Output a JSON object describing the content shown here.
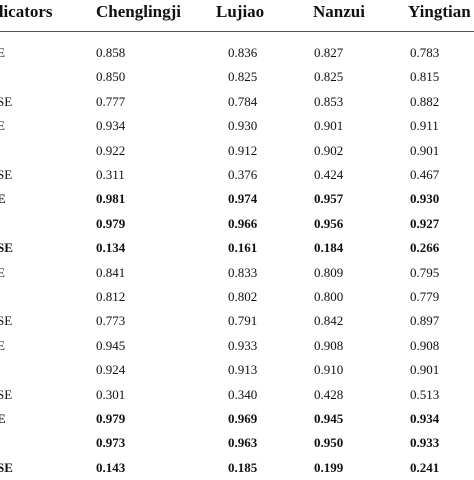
{
  "header": {
    "indicators": "dicators",
    "cols": [
      "Chenglingji",
      "Lujiao",
      "Nanzui",
      "Yingtian"
    ]
  },
  "rows": [
    {
      "label": "E",
      "values": [
        "0.858",
        "0.836",
        "0.827",
        "0.783"
      ],
      "bold": false
    },
    {
      "label": "",
      "values": [
        "0.850",
        "0.825",
        "0.825",
        "0.815"
      ],
      "bold": false
    },
    {
      "label": "SE",
      "values": [
        "0.777",
        "0.784",
        "0.853",
        "0.882"
      ],
      "bold": false
    },
    {
      "label": "E",
      "values": [
        "0.934",
        "0.930",
        "0.901",
        "0.911"
      ],
      "bold": false
    },
    {
      "label": "",
      "values": [
        "0.922",
        "0.912",
        "0.902",
        "0.901"
      ],
      "bold": false
    },
    {
      "label": "SE",
      "values": [
        "0.311",
        "0.376",
        "0.424",
        "0.467"
      ],
      "bold": false
    },
    {
      "label": "E",
      "values": [
        "0.981",
        "0.974",
        "0.957",
        "0.930"
      ],
      "bold": true
    },
    {
      "label": "",
      "values": [
        "0.979",
        "0.966",
        "0.956",
        "0.927"
      ],
      "bold": true
    },
    {
      "label": "SE",
      "values": [
        "0.134",
        "0.161",
        "0.184",
        "0.266"
      ],
      "bold": true
    },
    {
      "label": "E",
      "values": [
        "0.841",
        "0.833",
        "0.809",
        "0.795"
      ],
      "bold": false
    },
    {
      "label": "",
      "values": [
        "0.812",
        "0.802",
        "0.800",
        "0.779"
      ],
      "bold": false
    },
    {
      "label": "SE",
      "values": [
        "0.773",
        "0.791",
        "0.842",
        "0.897"
      ],
      "bold": false
    },
    {
      "label": "E",
      "values": [
        "0.945",
        "0.933",
        "0.908",
        "0.908"
      ],
      "bold": false
    },
    {
      "label": "",
      "values": [
        "0.924",
        "0.913",
        "0.910",
        "0.901"
      ],
      "bold": false
    },
    {
      "label": "SE",
      "values": [
        "0.301",
        "0.340",
        "0.428",
        "0.513"
      ],
      "bold": false
    },
    {
      "label": "E",
      "values": [
        "0.979",
        "0.969",
        "0.945",
        "0.934"
      ],
      "bold": true
    },
    {
      "label": "",
      "values": [
        "0.973",
        "0.963",
        "0.950",
        "0.933"
      ],
      "bold": true
    },
    {
      "label": "SE",
      "values": [
        "0.143",
        "0.185",
        "0.199",
        "0.241"
      ],
      "bold": true
    }
  ]
}
